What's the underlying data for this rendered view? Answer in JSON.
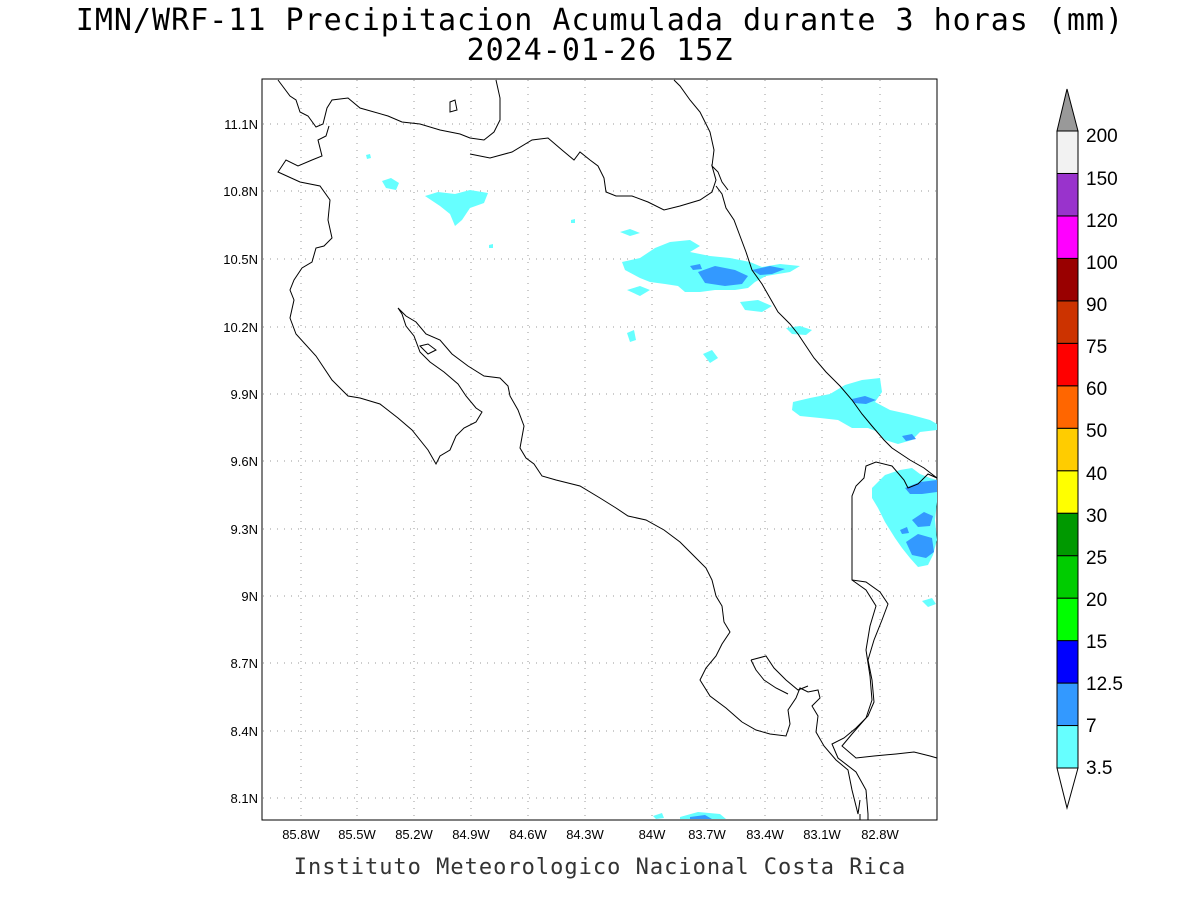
{
  "header": {
    "title_line1": "IMN/WRF-11 Precipitacion Acumulada durante 3 horas (mm)",
    "title_line2": "2024-01-26 15Z"
  },
  "footer": {
    "credit": "Instituto Meteorologico Nacional Costa Rica"
  },
  "map": {
    "latitude_labels": [
      "11.1N",
      "10.8N",
      "10.5N",
      "10.2N",
      "9.9N",
      "9.6N",
      "9.3N",
      "9N",
      "8.7N",
      "8.4N",
      "8.1N"
    ],
    "longitude_labels": [
      "85.8W",
      "85.5W",
      "85.2W",
      "84.9W",
      "84.6W",
      "84.3W",
      "84W",
      "83.7W",
      "83.4W",
      "83.1W",
      "82.8W"
    ],
    "gridlines": true,
    "region": "Costa Rica"
  },
  "legend": {
    "labels": [
      "3.5",
      "7",
      "12.5",
      "15",
      "20",
      "25",
      "30",
      "40",
      "50",
      "60",
      "75",
      "90",
      "100",
      "120",
      "150",
      "200"
    ],
    "colors": [
      "#66ffff",
      "#3399ff",
      "#0000ff",
      "#00ff00",
      "#00cc00",
      "#009900",
      "#ffff00",
      "#ffcc00",
      "#ff6600",
      "#ff0000",
      "#cc3300",
      "#990000",
      "#ff00ff",
      "#9933cc",
      "#f2f2f2",
      "#999999"
    ]
  }
}
